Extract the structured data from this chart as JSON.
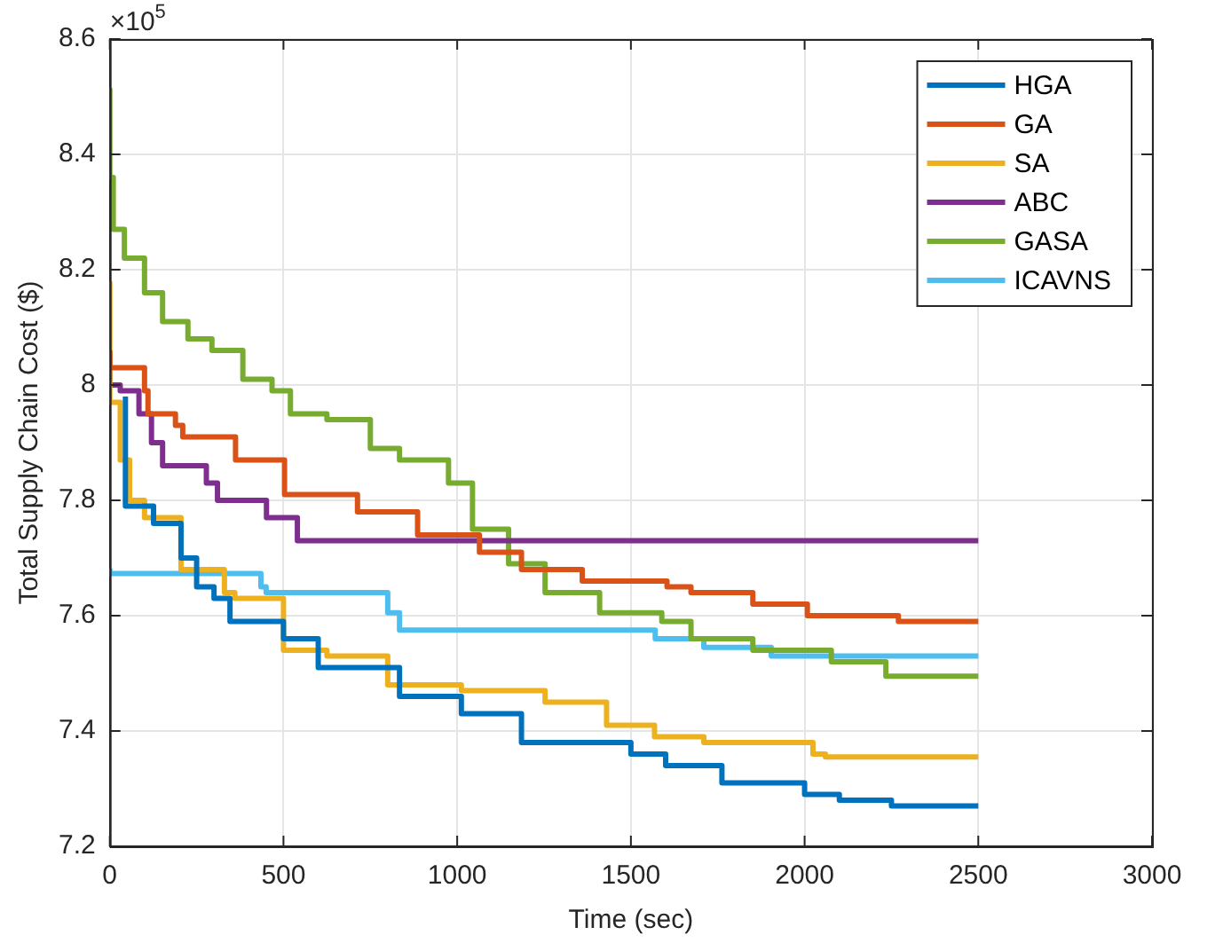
{
  "chart_data": {
    "type": "step",
    "xlabel": "Time (sec)",
    "ylabel": "Total Supply Chain Cost ($)",
    "annotations": [
      "×10$^{5}$"
    ],
    "xlim": [
      0,
      3000
    ],
    "xticks": [
      0,
      500,
      1000,
      1500,
      2000,
      2500,
      3000
    ],
    "ylim": [
      7.2,
      8.6
    ],
    "yticks": [
      7.2,
      7.4,
      7.6,
      7.8,
      8,
      8.2,
      8.4,
      8.6
    ],
    "grid": true,
    "legend": "top right",
    "marker": "none",
    "line_style": "solid",
    "series": [
      {
        "name": "HGA",
        "color": "#0072bd",
        "x": [
          45,
          126,
          205,
          250,
          300,
          346,
          500,
          600,
          834,
          1012,
          1185,
          1500,
          1600,
          1762,
          2000,
          2100,
          2250,
          2500
        ],
        "values": [
          7.98,
          7.79,
          7.76,
          7.7,
          7.65,
          7.63,
          7.59,
          7.56,
          7.51,
          7.46,
          7.43,
          7.38,
          7.36,
          7.34,
          7.31,
          7.29,
          7.28,
          7.27
        ]
      },
      {
        "name": "GA",
        "color": "#d95319",
        "x": [
          0,
          100,
          110,
          189,
          210,
          362,
          503,
          713,
          886,
          1064,
          1185,
          1360,
          1604,
          1673,
          1851,
          2008,
          2270,
          2500
        ],
        "values": [
          8.06,
          8.03,
          7.99,
          7.95,
          7.93,
          7.91,
          7.87,
          7.81,
          7.78,
          7.74,
          7.71,
          7.68,
          7.66,
          7.65,
          7.64,
          7.62,
          7.6,
          7.59
        ]
      },
      {
        "name": "SA",
        "color": "#edb120",
        "x": [
          0,
          30,
          57,
          100,
          205,
          330,
          360,
          500,
          625,
          800,
          1012,
          1253,
          1430,
          1568,
          1710,
          2024,
          2060,
          2500
        ],
        "values": [
          8.18,
          7.97,
          7.87,
          7.8,
          7.77,
          7.68,
          7.64,
          7.63,
          7.54,
          7.53,
          7.48,
          7.47,
          7.45,
          7.41,
          7.39,
          7.38,
          7.36,
          7.355
        ]
      },
      {
        "name": "ABC",
        "color": "#7e2f8e",
        "x": [
          0,
          30,
          84,
          120,
          152,
          278,
          310,
          451,
          540,
          625,
          2500
        ],
        "values": [
          8.055,
          8,
          7.99,
          7.95,
          7.9,
          7.86,
          7.83,
          7.8,
          7.77,
          7.73,
          7.73
        ]
      },
      {
        "name": "GASA",
        "color": "#77ac30",
        "x": [
          0,
          10,
          42,
          100,
          152,
          225,
          294,
          383,
          467,
          520,
          625,
          750,
          834,
          975,
          1044,
          1148,
          1253,
          1410,
          1589,
          1673,
          1851,
          2077,
          2234,
          2500
        ],
        "values": [
          8.515,
          8.36,
          8.27,
          8.22,
          8.16,
          8.11,
          8.08,
          8.06,
          8.01,
          7.99,
          7.95,
          7.94,
          7.89,
          7.87,
          7.83,
          7.75,
          7.69,
          7.64,
          7.605,
          7.59,
          7.56,
          7.54,
          7.52,
          7.495
        ]
      },
      {
        "name": "ICAVNS",
        "color": "#4dbeee",
        "x": [
          0,
          435,
          450,
          800,
          834,
          1570,
          1710,
          1904,
          2500
        ],
        "values": [
          7.682,
          7.673,
          7.65,
          7.64,
          7.605,
          7.575,
          7.56,
          7.545,
          7.53
        ]
      }
    ]
  }
}
